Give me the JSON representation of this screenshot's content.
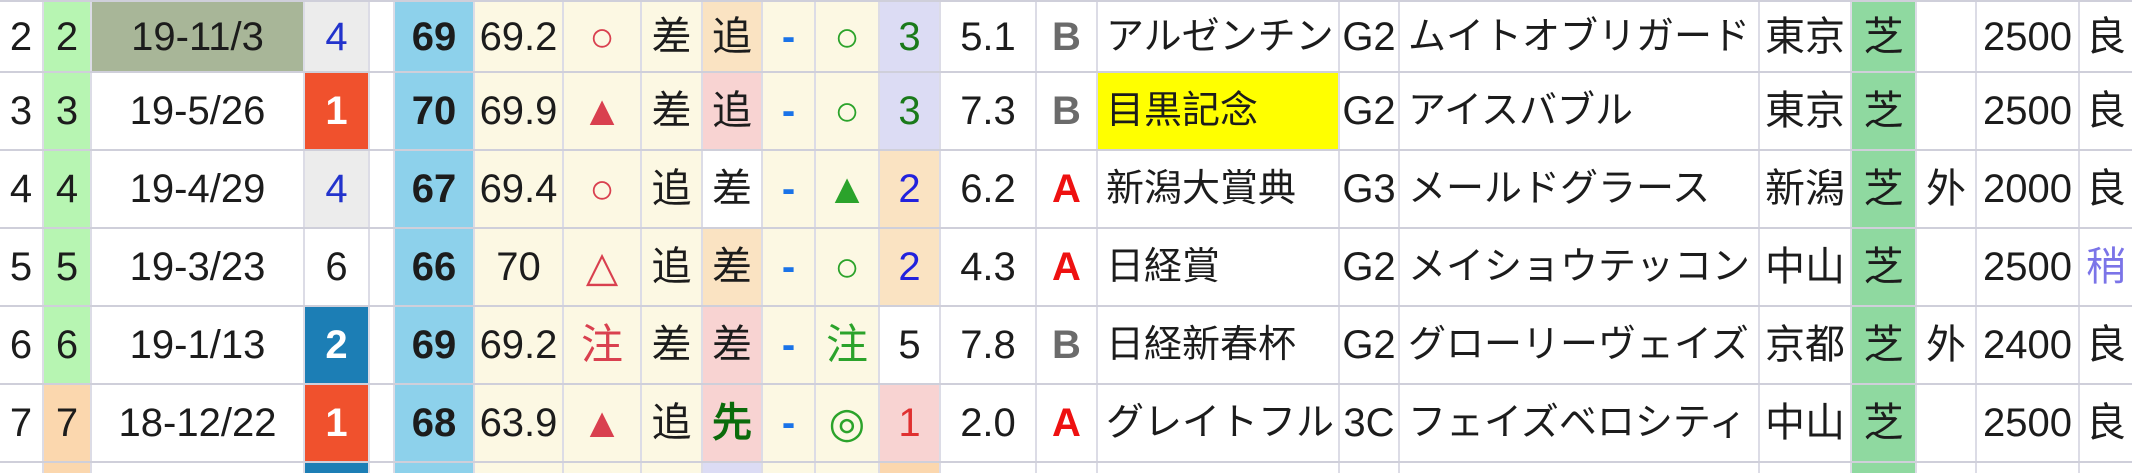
{
  "table": {
    "description_labels": {
      "surface_turf": "芝",
      "outer_course": "外"
    },
    "rows": [
      {
        "idx": "2",
        "num": "2",
        "date": "19-11/3",
        "pos": "4",
        "rating": "69",
        "score": "69.2",
        "mark_r": "○",
        "t1": "差",
        "t2": "追",
        "dash": "-",
        "mark_g": "○",
        "rank": "3",
        "odds": "5.1",
        "cls": "B",
        "race": "アルゼンチン",
        "grade": "G2",
        "horse": "ムイトオブリガード",
        "track": "東京",
        "surface": "芝",
        "inout": "",
        "dist": "2500",
        "cond": "良"
      },
      {
        "idx": "3",
        "num": "3",
        "date": "19-5/26",
        "pos": "1",
        "rating": "70",
        "score": "69.9",
        "mark_r": "▲",
        "t1": "差",
        "t2": "追",
        "dash": "-",
        "mark_g": "○",
        "rank": "3",
        "odds": "7.3",
        "cls": "B",
        "race": "目黒記念",
        "grade": "G2",
        "horse": "アイスバブル",
        "track": "東京",
        "surface": "芝",
        "inout": "",
        "dist": "2500",
        "cond": "良"
      },
      {
        "idx": "4",
        "num": "4",
        "date": "19-4/29",
        "pos": "4",
        "rating": "67",
        "score": "69.4",
        "mark_r": "○",
        "t1": "追",
        "t2": "差",
        "dash": "-",
        "mark_g": "▲",
        "rank": "2",
        "odds": "6.2",
        "cls": "A",
        "race": "新潟大賞典",
        "grade": "G3",
        "horse": "メールドグラース",
        "track": "新潟",
        "surface": "芝",
        "inout": "外",
        "dist": "2000",
        "cond": "良"
      },
      {
        "idx": "5",
        "num": "5",
        "date": "19-3/23",
        "pos": "6",
        "rating": "66",
        "score": "70",
        "mark_r": "△",
        "t1": "追",
        "t2": "差",
        "dash": "-",
        "mark_g": "○",
        "rank": "2",
        "odds": "4.3",
        "cls": "A",
        "race": "日経賞",
        "grade": "G2",
        "horse": "メイショウテッコン",
        "track": "中山",
        "surface": "芝",
        "inout": "",
        "dist": "2500",
        "cond": "稍"
      },
      {
        "idx": "6",
        "num": "6",
        "date": "19-1/13",
        "pos": "2",
        "rating": "69",
        "score": "69.2",
        "mark_r": "注",
        "t1": "差",
        "t2": "差",
        "dash": "-",
        "mark_g": "注",
        "rank": "5",
        "odds": "7.8",
        "cls": "B",
        "race": "日経新春杯",
        "grade": "G2",
        "horse": "グローリーヴェイズ",
        "track": "京都",
        "surface": "芝",
        "inout": "外",
        "dist": "2400",
        "cond": "良"
      },
      {
        "idx": "7",
        "num": "7",
        "date": "18-12/22",
        "pos": "1",
        "rating": "68",
        "score": "63.9",
        "mark_r": "▲",
        "t1": "追",
        "t2": "先",
        "dash": "-",
        "mark_g": "◎",
        "rank": "1",
        "odds": "2.0",
        "cls": "A",
        "race": "グレイトフル",
        "grade": "3C",
        "horse": "フェイズベロシティ",
        "track": "中山",
        "surface": "芝",
        "inout": "",
        "dist": "2500",
        "cond": "良"
      }
    ]
  },
  "colors": {
    "row_highlight_yellow": "#ffff00",
    "rating_cell_blue": "#8dd1eb",
    "cream_cell": "#fcf8e3",
    "green_number_cell": "#b7f5b2",
    "peach_cell": "#fbd7ae",
    "sage_date_cell": "#a8b698",
    "position_badge_red": "#f0512d",
    "position_badge_blue": "#1c7eb5",
    "surface_green": "#8fd9a0",
    "pink_cell": "#f8d3d2",
    "light_orange_cell": "#fae3c2",
    "lavender_cell": "#dcdcf4",
    "mark_red": "#d9404f",
    "mark_green": "#2ba32b"
  }
}
